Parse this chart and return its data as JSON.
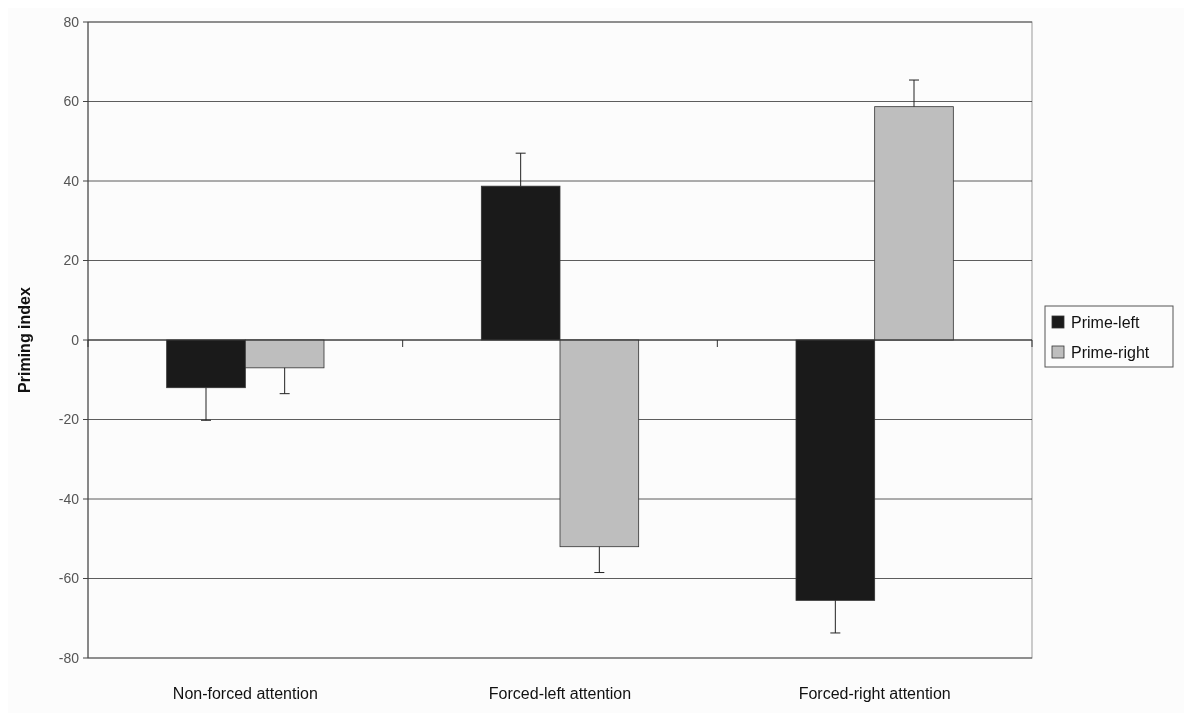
{
  "chart_data": {
    "type": "bar",
    "ylabel": "Priming index",
    "categories": [
      "Non-forced attention",
      "Forced-left attention",
      "Forced-right attention"
    ],
    "series": [
      {
        "name": "Prime-left",
        "color": "#1a1a1a",
        "values": [
          -12,
          38.7,
          -65.5
        ],
        "errors": [
          [
            -20.2,
            -12
          ],
          [
            38.7,
            47
          ],
          [
            -73.7,
            -65.5
          ]
        ]
      },
      {
        "name": "Prime-right",
        "color": "#bebebe",
        "values": [
          -7,
          -52,
          58.7
        ],
        "errors": [
          [
            -13.5,
            -7
          ],
          [
            -58.5,
            -52
          ],
          [
            58.7,
            65.4
          ]
        ]
      }
    ],
    "ylim": [
      -80,
      80
    ],
    "yticks": [
      -80,
      -60,
      -40,
      -20,
      0,
      20,
      40,
      60,
      80
    ],
    "grid": "y",
    "legend": "right"
  }
}
